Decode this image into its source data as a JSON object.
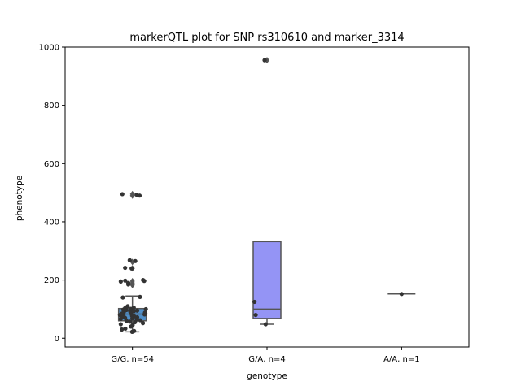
{
  "chart_data": {
    "type": "box",
    "title": "markerQTL plot for SNP rs310610 and marker_3314",
    "xlabel": "genotype",
    "ylabel": "phenotype",
    "ylim": [
      -30,
      1000
    ],
    "yticks": [
      0,
      200,
      400,
      600,
      800,
      1000
    ],
    "grid": false,
    "legend": "none",
    "categories": [
      "G/G, n=54",
      "G/A, n=4",
      "A/A, n=1"
    ],
    "boxes": [
      {
        "category": "G/G, n=54",
        "q1": 60,
        "median": 83,
        "q3": 102,
        "whisker_low": 22,
        "whisker_high": 145,
        "color": "#4f8fc9",
        "outliers": [
          183,
          190,
          196,
          240,
          262,
          490,
          495
        ]
      },
      {
        "category": "G/A, n=4",
        "q1": 68,
        "median": 100,
        "q3": 332,
        "whisker_low": 48,
        "whisker_high": 332,
        "color": "#9494f5",
        "outliers": [
          955
        ]
      },
      {
        "category": "A/A, n=1",
        "q1": 152,
        "median": 152,
        "q3": 152,
        "whisker_low": 152,
        "whisker_high": 152,
        "color": "#6a6a6a",
        "outliers": []
      }
    ],
    "points": [
      {
        "category": "G/G, n=54",
        "y": [
          22,
          25,
          30,
          33,
          40,
          45,
          48,
          52,
          55,
          57,
          60,
          62,
          64,
          66,
          68,
          70,
          72,
          74,
          75,
          77,
          78,
          80,
          82,
          84,
          85,
          86,
          88,
          90,
          92,
          93,
          95,
          97,
          98,
          100,
          101,
          103,
          105,
          110,
          140,
          142,
          185,
          190,
          195,
          197,
          198,
          200,
          240,
          242,
          265,
          268,
          490,
          493,
          495,
          96
        ]
      },
      {
        "category": "G/A, n=4",
        "y": [
          48,
          80,
          125,
          955
        ]
      },
      {
        "category": "A/A, n=1",
        "y": [
          152
        ]
      }
    ]
  }
}
